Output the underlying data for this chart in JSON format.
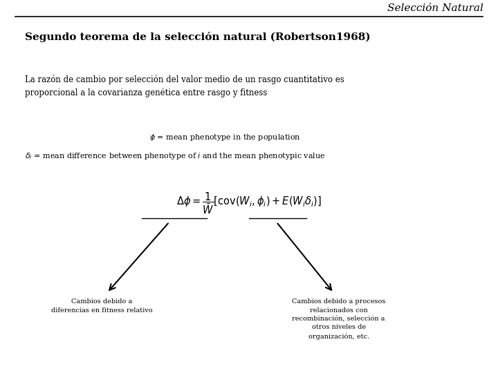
{
  "bg_color": "#ffffff",
  "header_title": "Selección Natural",
  "slide_title": "Segundo teorema de la selección natural (Robertson1968)",
  "body_text": "La razón de cambio por selección del valor medio de un rasgo cuantitativo es\nproporcional a la covarianza genética entre rasgo y fitness",
  "def1": "$\\phi$ = mean phenotype in the population",
  "def2": "$\\delta_i$ = mean difference between phenotype of $i$ and the mean phenotypic value",
  "formula": "$\\Delta\\phi = \\dfrac{1}{\\bar{W}} \\left[\\mathrm{cov}(W_i, \\phi_i) + E(W_i\\delta_i)\\right]$",
  "left_label": "Cambios debido a\ndiferencias en fitness relativo",
  "right_label": "Cambios debido a procesos\nrelacionados con\nrecombinación, selección a\notros niveles de\norganización, etc."
}
